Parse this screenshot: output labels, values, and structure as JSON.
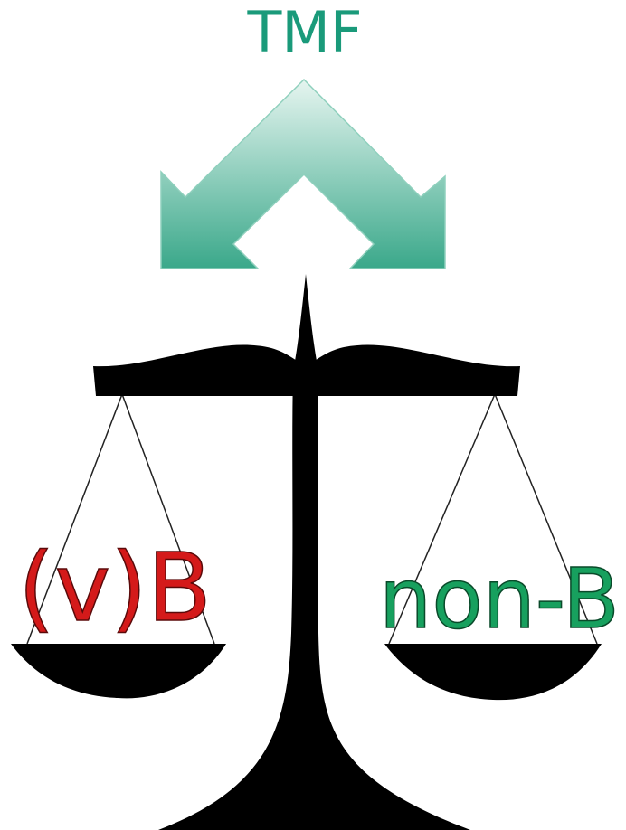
{
  "title": "TMF",
  "left_pan": {
    "label": "(v)B"
  },
  "right_pan": {
    "label": "non-B"
  }
}
